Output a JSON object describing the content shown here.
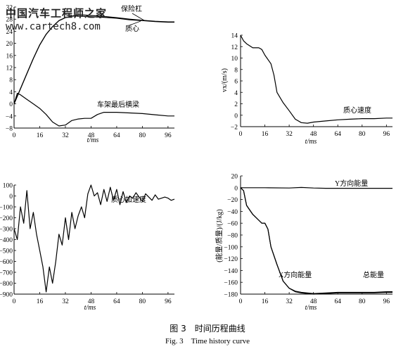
{
  "watermark": {
    "line1": "中国汽车工程师之家",
    "line2": "www.cartech8.com"
  },
  "caption": {
    "zh": "图 3　时间历程曲线",
    "en": "Fig. 3　Time history curve"
  },
  "chart_data": [
    {
      "type": "line",
      "xlabel": "t/ms",
      "ylabel": "",
      "xlim": [
        0,
        100
      ],
      "ylim": [
        -8,
        32
      ],
      "xticks": [
        0,
        16,
        32,
        48,
        64,
        80,
        96
      ],
      "yticks": [
        -8,
        -4,
        0,
        4,
        8,
        12,
        16,
        20,
        24,
        28,
        32
      ],
      "series": [
        {
          "name": "保险杠",
          "x": [
            0,
            4,
            8,
            12,
            16,
            20,
            24,
            28,
            32,
            36,
            40,
            48,
            56,
            64,
            72,
            80,
            88,
            96,
            100
          ],
          "y": [
            0,
            5,
            10,
            15,
            19.5,
            23,
            25.5,
            27.5,
            28.5,
            29,
            29,
            28.8,
            28.6,
            28.3,
            27.8,
            27.5,
            27.2,
            27,
            27
          ]
        },
        {
          "name": "质心",
          "x": [
            0,
            4,
            8,
            12,
            16,
            20,
            24,
            28,
            32,
            36,
            40,
            48,
            56,
            64,
            72,
            80,
            88,
            96,
            100
          ],
          "y": [
            0,
            5,
            10,
            15,
            19.5,
            23,
            25.5,
            27.5,
            28.5,
            29,
            29.5,
            29.2,
            28.9,
            28.5,
            28,
            27.6,
            27.3,
            27.1,
            27.1
          ]
        },
        {
          "name": "车架最后横梁",
          "x": [
            0,
            2,
            4,
            8,
            12,
            16,
            20,
            24,
            28,
            32,
            36,
            40,
            44,
            48,
            52,
            56,
            64,
            72,
            80,
            88,
            96,
            100
          ],
          "y": [
            0,
            3.5,
            3,
            1.5,
            0,
            -1.5,
            -3.5,
            -6,
            -7.3,
            -7,
            -5.5,
            -5,
            -4.8,
            -4.8,
            -3.5,
            -2.8,
            -2.8,
            -3,
            -3.2,
            -3.6,
            -4,
            -4
          ]
        }
      ],
      "annotations": [
        "保险杠",
        "质心",
        "车架最后横梁"
      ]
    },
    {
      "type": "line",
      "xlabel": "t/ms",
      "ylabel": "vx/(m/s)",
      "xlim": [
        0,
        100
      ],
      "ylim": [
        -2,
        14
      ],
      "xticks": [
        0,
        16,
        32,
        48,
        64,
        80,
        96
      ],
      "yticks": [
        -2,
        0,
        2,
        4,
        6,
        8,
        10,
        12,
        14
      ],
      "series": [
        {
          "name": "质心速度",
          "x": [
            0,
            2,
            4,
            8,
            12,
            14,
            16,
            20,
            22,
            24,
            28,
            32,
            36,
            40,
            44,
            48,
            56,
            64,
            72,
            80,
            88,
            96,
            100
          ],
          "y": [
            14,
            13,
            12.5,
            11.8,
            11.8,
            11.5,
            10.5,
            9,
            7,
            4,
            2.2,
            0.8,
            -0.7,
            -1.3,
            -1.4,
            -1.2,
            -1,
            -0.8,
            -0.7,
            -0.6,
            -0.6,
            -0.5,
            -0.5
          ]
        }
      ],
      "annotations": [
        "质心速度"
      ]
    },
    {
      "type": "line",
      "xlabel": "t/ms",
      "ylabel": "",
      "xlim": [
        0,
        100
      ],
      "ylim": [
        -900,
        100
      ],
      "xticks": [
        0,
        16,
        32,
        48,
        64,
        80,
        96
      ],
      "yticks": [
        -900,
        -800,
        -700,
        -600,
        -500,
        -400,
        -300,
        -200,
        -100,
        0,
        100
      ],
      "series": [
        {
          "name": "质心加速度",
          "x": [
            0,
            2,
            4,
            6,
            8,
            10,
            12,
            14,
            16,
            18,
            20,
            22,
            24,
            26,
            28,
            30,
            32,
            34,
            36,
            38,
            40,
            42,
            44,
            46,
            48,
            50,
            52,
            54,
            56,
            58,
            60,
            62,
            64,
            66,
            68,
            70,
            72,
            74,
            76,
            78,
            80,
            82,
            84,
            86,
            88,
            90,
            92,
            94,
            96,
            98,
            100
          ],
          "y": [
            -300,
            -400,
            -100,
            -250,
            50,
            -300,
            -150,
            -350,
            -500,
            -650,
            -880,
            -650,
            -800,
            -600,
            -350,
            -450,
            -200,
            -400,
            -150,
            -300,
            -180,
            -100,
            -200,
            20,
            100,
            0,
            30,
            -80,
            60,
            -50,
            80,
            -40,
            60,
            -80,
            40,
            -60,
            0,
            -20,
            30,
            -10,
            -50,
            20,
            -10,
            -40,
            10,
            -30,
            -20,
            -10,
            -20,
            -40,
            -30
          ]
        }
      ],
      "annotations": [
        "质心加速度"
      ]
    },
    {
      "type": "line",
      "xlabel": "t/ms",
      "ylabel": "(能量/质量)/(J/kg)",
      "xlim": [
        0,
        100
      ],
      "ylim": [
        -180,
        20
      ],
      "xticks": [
        0,
        16,
        32,
        48,
        64,
        80,
        96
      ],
      "yticks": [
        -180,
        -160,
        -140,
        -120,
        -100,
        -80,
        -60,
        -40,
        -20,
        0,
        20
      ],
      "series": [
        {
          "name": "Y方向能量",
          "x": [
            0,
            16,
            32,
            40,
            48,
            56,
            64,
            72,
            80,
            88,
            96,
            100
          ],
          "y": [
            0,
            0,
            -0.5,
            0.5,
            -0.5,
            -1,
            -1,
            -1,
            -1,
            -1,
            -1,
            -1
          ]
        },
        {
          "name": "X方向能量",
          "x": [
            0,
            2,
            4,
            8,
            12,
            14,
            16,
            18,
            20,
            24,
            28,
            32,
            36,
            40,
            44,
            48,
            56,
            64,
            72,
            80,
            88,
            96,
            100
          ],
          "y": [
            0,
            -5,
            -30,
            -45,
            -55,
            -60,
            -60,
            -70,
            -100,
            -130,
            -158,
            -170,
            -176,
            -178,
            -179,
            -180,
            -179,
            -178,
            -178,
            -178,
            -178,
            -177,
            -177
          ]
        },
        {
          "name": "总能量",
          "x": [
            0,
            2,
            4,
            8,
            12,
            14,
            16,
            18,
            20,
            24,
            28,
            32,
            36,
            40,
            44,
            48,
            56,
            64,
            72,
            80,
            88,
            96,
            100
          ],
          "y": [
            0,
            -5,
            -30,
            -45,
            -55,
            -60,
            -60,
            -70,
            -100,
            -130,
            -158,
            -170,
            -175,
            -177,
            -178,
            -179,
            -178,
            -177,
            -177,
            -177,
            -177,
            -176,
            -176
          ]
        }
      ],
      "annotations": [
        "Y方向能量",
        "X方向能量",
        "总能量"
      ]
    }
  ]
}
